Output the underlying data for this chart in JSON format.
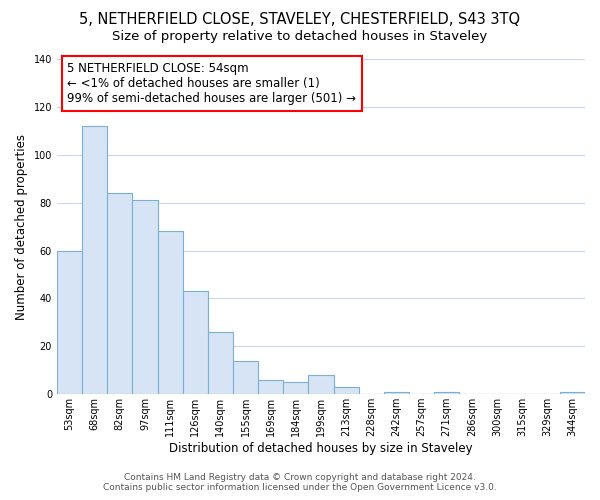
{
  "title": "5, NETHERFIELD CLOSE, STAVELEY, CHESTERFIELD, S43 3TQ",
  "subtitle": "Size of property relative to detached houses in Staveley",
  "xlabel": "Distribution of detached houses by size in Staveley",
  "ylabel": "Number of detached properties",
  "bar_labels": [
    "53sqm",
    "68sqm",
    "82sqm",
    "97sqm",
    "111sqm",
    "126sqm",
    "140sqm",
    "155sqm",
    "169sqm",
    "184sqm",
    "199sqm",
    "213sqm",
    "228sqm",
    "242sqm",
    "257sqm",
    "271sqm",
    "286sqm",
    "300sqm",
    "315sqm",
    "329sqm",
    "344sqm"
  ],
  "bar_values": [
    60,
    112,
    84,
    81,
    68,
    43,
    26,
    14,
    6,
    5,
    8,
    3,
    0,
    1,
    0,
    1,
    0,
    0,
    0,
    0,
    1
  ],
  "bar_fill_color": "#d6e4f5",
  "bar_edge_color": "#7bafd4",
  "ylim": [
    0,
    140
  ],
  "yticks": [
    0,
    20,
    40,
    60,
    80,
    100,
    120,
    140
  ],
  "annotation_title": "5 NETHERFIELD CLOSE: 54sqm",
  "annotation_line1": "← <1% of detached houses are smaller (1)",
  "annotation_line2": "99% of semi-detached houses are larger (501) →",
  "footer_line1": "Contains HM Land Registry data © Crown copyright and database right 2024.",
  "footer_line2": "Contains public sector information licensed under the Open Government Licence v3.0.",
  "background_color": "#ffffff",
  "grid_color": "#c8d8ea",
  "title_fontsize": 10.5,
  "subtitle_fontsize": 9.5,
  "axis_label_fontsize": 8.5,
  "tick_fontsize": 7,
  "footer_fontsize": 6.5,
  "annotation_fontsize": 8.5
}
